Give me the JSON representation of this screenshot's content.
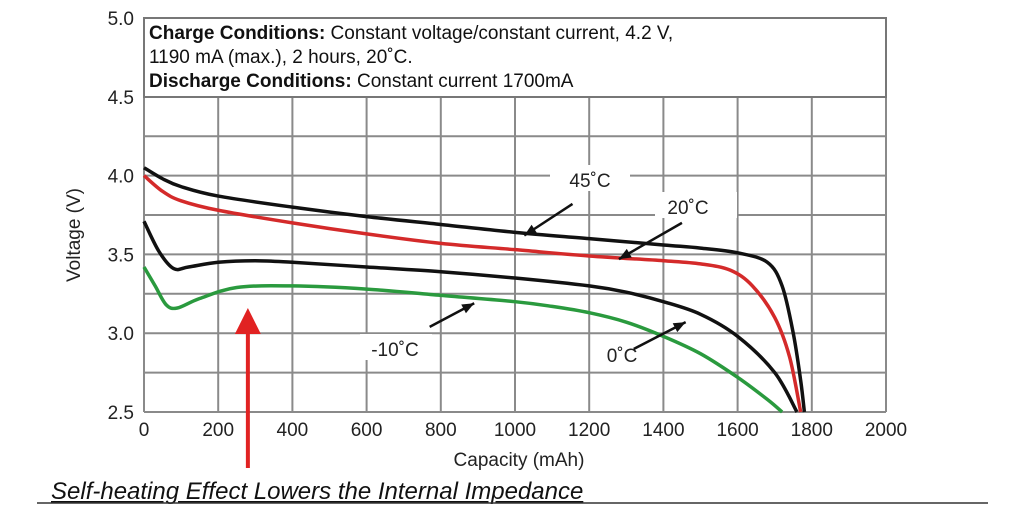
{
  "chart_data": {
    "type": "line",
    "title": "",
    "xlabel": "Capacity (mAh)",
    "ylabel": "Voltage (V)",
    "xlim": [
      0,
      2000
    ],
    "ylim": [
      2.5,
      5.0
    ],
    "grid": true,
    "x_ticks": [
      "0",
      "200",
      "400",
      "600",
      "800",
      "1000",
      "1200",
      "1400",
      "1600",
      "1800",
      "2000"
    ],
    "y_ticks": [
      "2.5",
      "3.0",
      "3.5",
      "4.0",
      "4.5",
      "5.0"
    ],
    "conditions": {
      "charge_heading": "Charge Conditions:",
      "charge_text_1": " Constant voltage/constant current, 4.2 V,",
      "charge_text_2": "1190 mA (max.), 2 hours, 20˚C.",
      "discharge_heading": "Discharge Conditions:",
      "discharge_text": " Constant current 1700mA"
    },
    "series": [
      {
        "name": "45˚C",
        "color": "#111111",
        "points": [
          [
            0,
            4.05
          ],
          [
            50,
            3.98
          ],
          [
            100,
            3.93
          ],
          [
            200,
            3.87
          ],
          [
            400,
            3.8
          ],
          [
            600,
            3.74
          ],
          [
            800,
            3.69
          ],
          [
            1000,
            3.64
          ],
          [
            1200,
            3.6
          ],
          [
            1400,
            3.56
          ],
          [
            1500,
            3.54
          ],
          [
            1600,
            3.51
          ],
          [
            1680,
            3.45
          ],
          [
            1720,
            3.3
          ],
          [
            1750,
            3.0
          ],
          [
            1770,
            2.7
          ],
          [
            1780,
            2.5
          ]
        ]
      },
      {
        "name": "20˚C",
        "color": "#d42a2a",
        "points": [
          [
            0,
            4.0
          ],
          [
            50,
            3.9
          ],
          [
            100,
            3.84
          ],
          [
            200,
            3.78
          ],
          [
            400,
            3.7
          ],
          [
            600,
            3.63
          ],
          [
            800,
            3.57
          ],
          [
            1000,
            3.53
          ],
          [
            1200,
            3.49
          ],
          [
            1400,
            3.46
          ],
          [
            1500,
            3.44
          ],
          [
            1580,
            3.4
          ],
          [
            1640,
            3.3
          ],
          [
            1700,
            3.1
          ],
          [
            1740,
            2.85
          ],
          [
            1770,
            2.5
          ]
        ]
      },
      {
        "name": "-10˚C",
        "color": "#111111",
        "points": [
          [
            0,
            3.71
          ],
          [
            40,
            3.52
          ],
          [
            80,
            3.41
          ],
          [
            120,
            3.42
          ],
          [
            200,
            3.45
          ],
          [
            300,
            3.46
          ],
          [
            400,
            3.45
          ],
          [
            600,
            3.42
          ],
          [
            800,
            3.39
          ],
          [
            1000,
            3.35
          ],
          [
            1200,
            3.3
          ],
          [
            1300,
            3.26
          ],
          [
            1400,
            3.2
          ],
          [
            1500,
            3.12
          ],
          [
            1600,
            2.98
          ],
          [
            1700,
            2.75
          ],
          [
            1760,
            2.5
          ]
        ]
      },
      {
        "name": "0˚C",
        "color": "#2a9a3e",
        "points": [
          [
            0,
            3.42
          ],
          [
            30,
            3.3
          ],
          [
            60,
            3.18
          ],
          [
            90,
            3.16
          ],
          [
            150,
            3.22
          ],
          [
            250,
            3.29
          ],
          [
            400,
            3.3
          ],
          [
            600,
            3.28
          ],
          [
            800,
            3.24
          ],
          [
            1000,
            3.2
          ],
          [
            1100,
            3.17
          ],
          [
            1200,
            3.13
          ],
          [
            1300,
            3.07
          ],
          [
            1400,
            2.98
          ],
          [
            1500,
            2.87
          ],
          [
            1600,
            2.72
          ],
          [
            1680,
            2.58
          ],
          [
            1720,
            2.5
          ]
        ]
      }
    ],
    "annotations": [
      {
        "label": "45˚C",
        "arrow_from": [
          1155,
          3.82
        ],
        "arrow_to": [
          1025,
          3.62
        ]
      },
      {
        "label": "20˚C",
        "arrow_from": [
          1450,
          3.7
        ],
        "arrow_to": [
          1280,
          3.47
        ]
      },
      {
        "label": "-10˚C",
        "arrow_from": [
          770,
          3.04
        ],
        "arrow_to": [
          890,
          3.19
        ]
      },
      {
        "label": "0˚C",
        "arrow_from": [
          1320,
          2.9
        ],
        "arrow_to": [
          1460,
          3.07
        ]
      }
    ],
    "caption": "Self-heating Effect Lowers the Internal Impedance",
    "caption_arrow": {
      "x": 280,
      "color": "#e12222"
    }
  }
}
